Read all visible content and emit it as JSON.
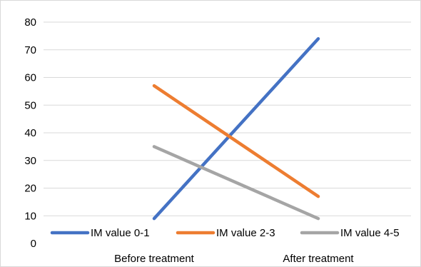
{
  "chart_data": {
    "type": "line",
    "categories": [
      "Before treatment",
      "After treatment"
    ],
    "series": [
      {
        "name": "IM value 0-1",
        "values": [
          9,
          74
        ],
        "color": "#4472c4"
      },
      {
        "name": "IM value 2-3",
        "values": [
          57,
          17
        ],
        "color": "#ed7d31"
      },
      {
        "name": "IM value 4-5",
        "values": [
          35,
          9
        ],
        "color": "#a5a5a5"
      }
    ],
    "title": "",
    "xlabel": "",
    "ylabel": "",
    "ylim": [
      0,
      80
    ],
    "yticks": [
      0,
      10,
      20,
      30,
      40,
      50,
      60,
      70,
      80
    ],
    "grid": true,
    "legend_position": "bottom"
  }
}
